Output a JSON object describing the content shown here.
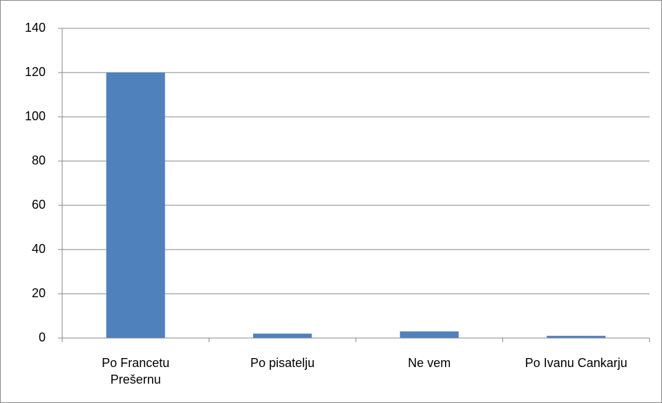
{
  "chart_data": {
    "type": "bar",
    "categories": [
      "Po Francetu Prešernu",
      "Po pisatelju",
      "Ne vem",
      "Po Ivanu Cankarju"
    ],
    "values": [
      120,
      2,
      3,
      1
    ],
    "color": "#4f81bd",
    "ylim": [
      0,
      140
    ],
    "yticks": [
      0,
      20,
      40,
      60,
      80,
      100,
      120,
      140
    ],
    "grid": true
  }
}
